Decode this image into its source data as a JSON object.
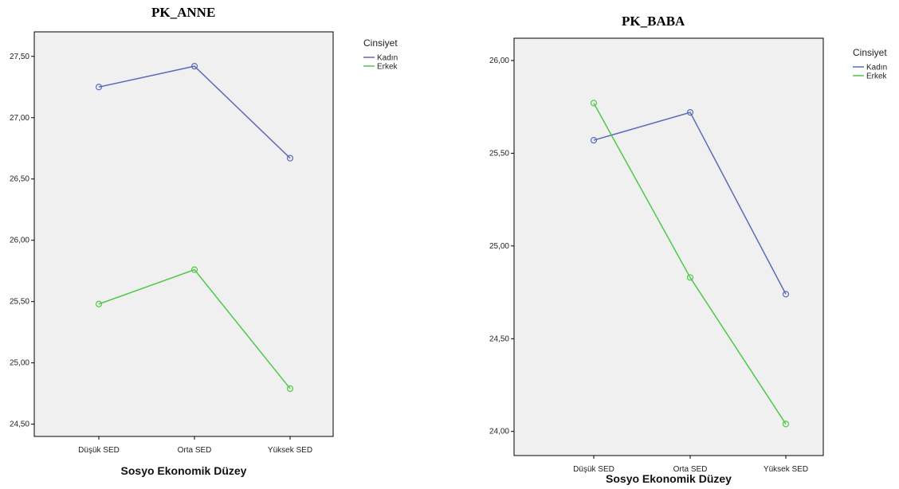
{
  "chart_data": [
    {
      "type": "line",
      "title": "PK_ANNE",
      "xlabel": "Sosyo Ekonomik Düzey",
      "ylabel": "",
      "categories": [
        "Düşük SED",
        "Orta SED",
        "Yüksek SED"
      ],
      "ylim": [
        24.4,
        27.7
      ],
      "yticks": [
        24.5,
        25.0,
        25.5,
        26.0,
        26.5,
        27.0,
        27.5
      ],
      "ytick_labels": [
        "24,50",
        "25,00",
        "25,50",
        "26,00",
        "26,50",
        "27,00",
        "27,50"
      ],
      "grid": false,
      "legend_title": "Cinsiyet",
      "legend_position": "top-right",
      "series": [
        {
          "name": "Kadın",
          "color": "#5b6bb8",
          "values": [
            27.25,
            27.42,
            26.67
          ]
        },
        {
          "name": "Erkek",
          "color": "#4fc84a",
          "values": [
            25.48,
            25.76,
            24.79
          ]
        }
      ]
    },
    {
      "type": "line",
      "title": "PK_BABA",
      "xlabel": "Sosyo Ekonomik Düzey",
      "ylabel": "",
      "categories": [
        "Düşük SED",
        "Orta SED",
        "Yüksek SED"
      ],
      "ylim": [
        23.87,
        26.12
      ],
      "yticks": [
        24.0,
        24.5,
        25.0,
        25.5,
        26.0
      ],
      "ytick_labels": [
        "24,00",
        "24,50",
        "25,00",
        "25,50",
        "26,00"
      ],
      "grid": false,
      "legend_title": "Cinsiyet",
      "legend_position": "top-right",
      "series": [
        {
          "name": "Kadın",
          "color": "#5b6bb8",
          "values": [
            25.57,
            25.72,
            24.74
          ]
        },
        {
          "name": "Erkek",
          "color": "#4fc84a",
          "values": [
            25.77,
            24.83,
            24.04
          ]
        }
      ]
    }
  ]
}
